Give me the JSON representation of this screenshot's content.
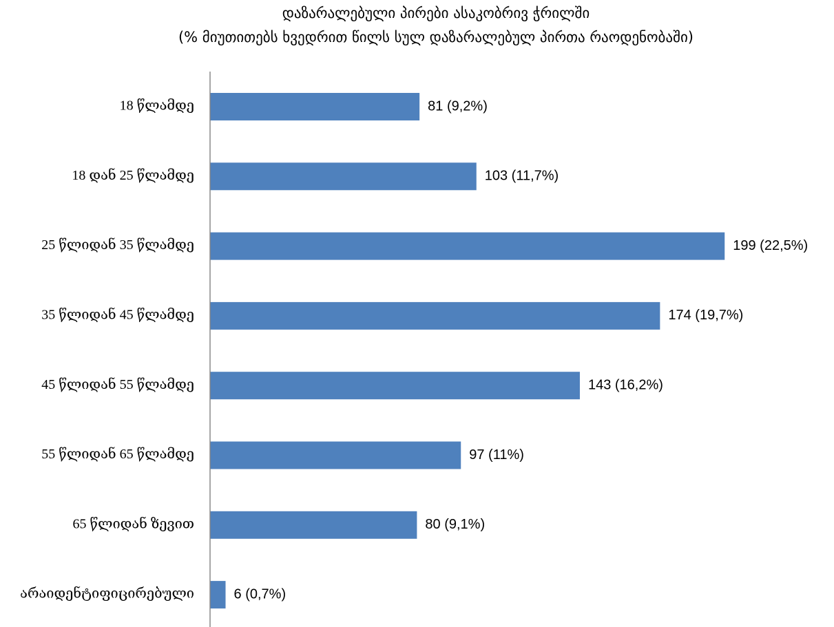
{
  "chart_data": {
    "type": "bar",
    "title": [
      "დაზარალებული პირები ასაკობრივ ჭრილში",
      "(% მიუთითებს ხვედრით წილს სულ დაზარალებულ პირთა რაოდენობაში)"
    ],
    "categories": [
      "18 წლამდე",
      "18 დან 25 წლამდე",
      "25 წლიდან 35 წლამდე",
      "35 წლიდან 45 წლამდე",
      "45 წლიდან 55 წლამდე",
      "55 წლიდან  65 წლამდე",
      "65 წლიდან ზევით",
      "არაიდენტიფიცირებული"
    ],
    "values": [
      81,
      103,
      199,
      174,
      143,
      97,
      80,
      6
    ],
    "value_labels": [
      "81 (9,2%)",
      "103 (11,7%)",
      "199 (22,5%)",
      "174 (19,7%)",
      "143 (16,2%)",
      "97 (11%)",
      "80 (9,1%)",
      "6 (0,7%)"
    ],
    "color": "#4f81bd",
    "xlim": [
      0,
      200
    ]
  }
}
